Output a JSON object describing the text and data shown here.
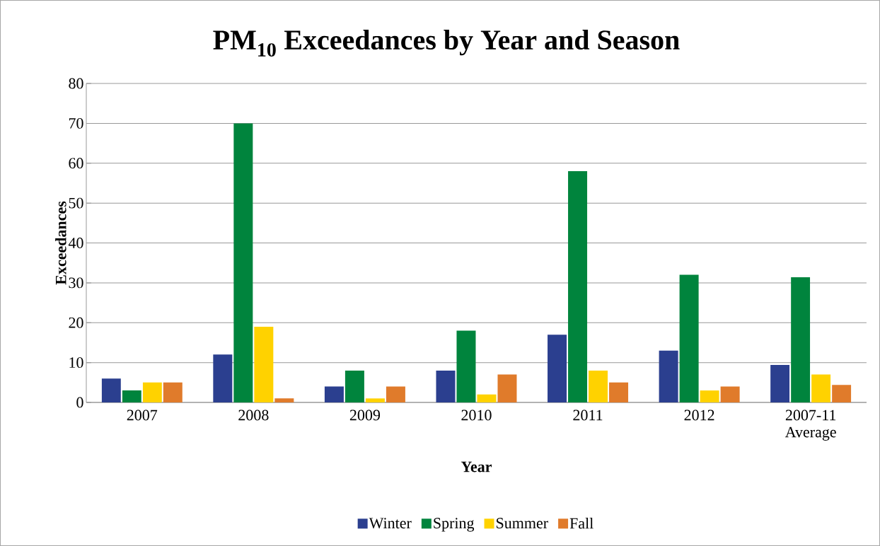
{
  "chart_data": {
    "type": "bar",
    "title": "PM$_{10}$ Exceedances by Year and Season",
    "xlabel": "Year",
    "ylabel": "Exceedances",
    "categories": [
      "2007",
      "2008",
      "2009",
      "2010",
      "2011",
      "2012",
      "2007-11 Average"
    ],
    "series": [
      {
        "name": "Winter",
        "color": "#2b3f8f",
        "values": [
          6,
          12,
          4,
          8,
          17,
          13,
          9.4
        ]
      },
      {
        "name": "Spring",
        "color": "#00843d",
        "values": [
          3,
          70,
          8,
          18,
          58,
          32,
          31.4
        ]
      },
      {
        "name": "Summer",
        "color": "#ffd200",
        "values": [
          5,
          19,
          1,
          2,
          8,
          3,
          7
        ]
      },
      {
        "name": "Fall",
        "color": "#e07b2b",
        "values": [
          5,
          1,
          4,
          7,
          5,
          4,
          4.4
        ]
      }
    ],
    "ylim": [
      0,
      80
    ],
    "yticks": [
      0,
      10,
      20,
      30,
      40,
      50,
      60,
      70,
      80
    ],
    "grid": "y",
    "legend": "bottom"
  }
}
